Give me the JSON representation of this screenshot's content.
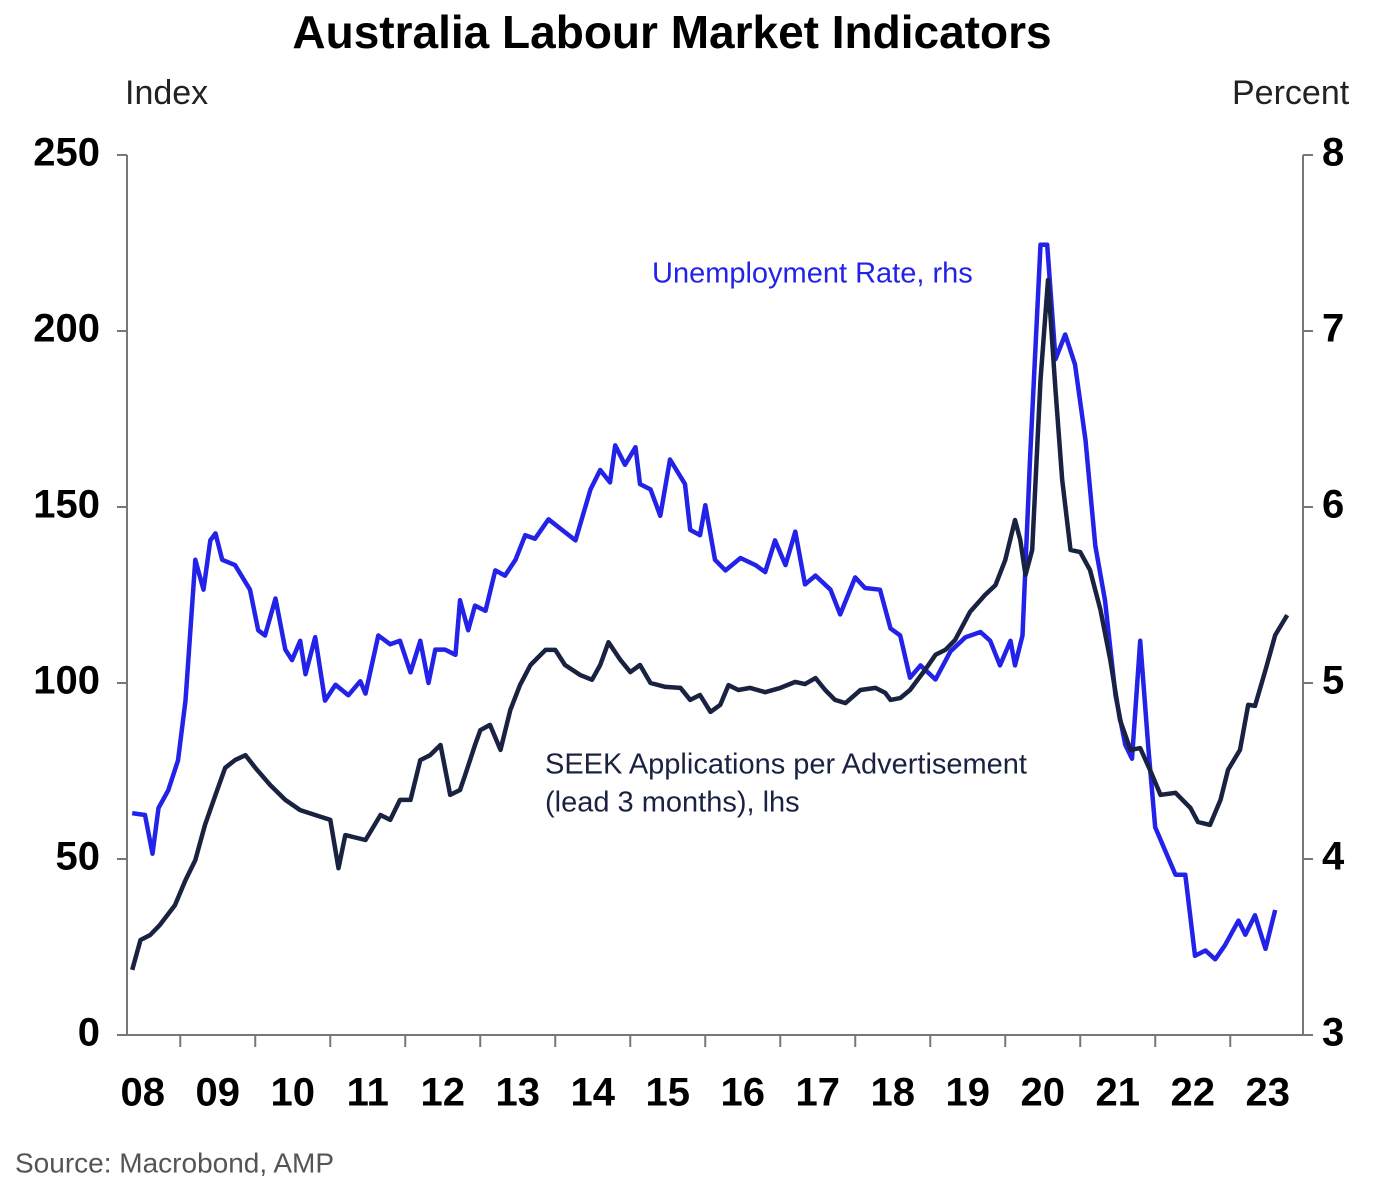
{
  "chart_data": {
    "type": "line",
    "title": "Australia Labour Market Indicators",
    "y_label": "Index",
    "y2_label": "Percent",
    "source": "Source: Macrobond, AMP",
    "xlim": [
      2008.29,
      2023.97
    ],
    "xticks": [
      {
        "value": 2008.5,
        "label": "08"
      },
      {
        "value": 2009.5,
        "label": "09"
      },
      {
        "value": 2010.5,
        "label": "10"
      },
      {
        "value": 2011.5,
        "label": "11"
      },
      {
        "value": 2012.5,
        "label": "12"
      },
      {
        "value": 2013.5,
        "label": "13"
      },
      {
        "value": 2014.5,
        "label": "14"
      },
      {
        "value": 2015.5,
        "label": "15"
      },
      {
        "value": 2016.5,
        "label": "16"
      },
      {
        "value": 2017.5,
        "label": "17"
      },
      {
        "value": 2018.5,
        "label": "18"
      },
      {
        "value": 2019.5,
        "label": "19"
      },
      {
        "value": 2020.5,
        "label": "20"
      },
      {
        "value": 2021.5,
        "label": "21"
      },
      {
        "value": 2022.5,
        "label": "22"
      },
      {
        "value": 2023.5,
        "label": "23"
      }
    ],
    "xtick_marks": [
      2009,
      2010,
      2011,
      2012,
      2013,
      2014,
      2015,
      2016,
      2017,
      2018,
      2019,
      2020,
      2021,
      2022,
      2023
    ],
    "ylim": [
      0,
      250
    ],
    "yticks": [
      0,
      50,
      100,
      150,
      200,
      250
    ],
    "y2lim": [
      3,
      8
    ],
    "y2ticks": [
      3,
      4,
      5,
      6,
      7,
      8
    ],
    "grid": false,
    "series": [
      {
        "label_lines": [
          "Unemployment Rate, rhs"
        ],
        "color": "#2222e8",
        "axis": "y2",
        "x": [
          2008.36,
          2008.53,
          2008.63,
          2008.71,
          2008.84,
          2008.97,
          2009.07,
          2009.2,
          2009.31,
          2009.4,
          2009.47,
          2009.56,
          2009.73,
          2009.93,
          2010.04,
          2010.13,
          2010.27,
          2010.4,
          2010.49,
          2010.6,
          2010.67,
          2010.8,
          2010.93,
          2011.07,
          2011.24,
          2011.4,
          2011.47,
          2011.64,
          2011.8,
          2011.93,
          2012.07,
          2012.2,
          2012.31,
          2012.4,
          2012.53,
          2012.67,
          2012.73,
          2012.84,
          2012.93,
          2013.07,
          2013.2,
          2013.33,
          2013.47,
          2013.6,
          2013.73,
          2013.91,
          2014.09,
          2014.27,
          2014.47,
          2014.6,
          2014.73,
          2014.8,
          2014.93,
          2015.07,
          2015.13,
          2015.27,
          2015.4,
          2015.53,
          2015.73,
          2015.8,
          2015.93,
          2016.0,
          2016.13,
          2016.27,
          2016.47,
          2016.67,
          2016.8,
          2016.93,
          2017.07,
          2017.2,
          2017.33,
          2017.47,
          2017.67,
          2017.8,
          2018.0,
          2018.13,
          2018.33,
          2018.47,
          2018.6,
          2018.73,
          2018.87,
          2019.07,
          2019.27,
          2019.47,
          2019.67,
          2019.8,
          2019.93,
          2020.07,
          2020.13,
          2020.23,
          2020.33,
          2020.47,
          2020.56,
          2020.67,
          2020.8,
          2020.93,
          2021.07,
          2021.2,
          2021.33,
          2021.47,
          2021.6,
          2021.69,
          2021.8,
          2021.91,
          2022.0,
          2022.13,
          2022.27,
          2022.4,
          2022.53,
          2022.67,
          2022.8,
          2022.93,
          2023.11,
          2023.2,
          2023.33,
          2023.47,
          2023.6
        ],
        "values": [
          4.26,
          4.25,
          4.03,
          4.29,
          4.39,
          4.56,
          4.9,
          5.7,
          5.53,
          5.81,
          5.85,
          5.7,
          5.67,
          5.53,
          5.3,
          5.27,
          5.48,
          5.19,
          5.13,
          5.24,
          5.05,
          5.26,
          4.9,
          4.99,
          4.93,
          5.01,
          4.94,
          5.27,
          5.22,
          5.24,
          5.06,
          5.24,
          5.0,
          5.19,
          5.19,
          5.16,
          5.47,
          5.3,
          5.44,
          5.41,
          5.64,
          5.61,
          5.7,
          5.84,
          5.82,
          5.93,
          5.87,
          5.81,
          6.1,
          6.21,
          6.14,
          6.35,
          6.24,
          6.34,
          6.13,
          6.1,
          5.95,
          6.27,
          6.13,
          5.87,
          5.84,
          6.01,
          5.7,
          5.64,
          5.71,
          5.67,
          5.63,
          5.81,
          5.67,
          5.86,
          5.56,
          5.61,
          5.53,
          5.39,
          5.6,
          5.54,
          5.53,
          5.31,
          5.27,
          5.03,
          5.1,
          5.02,
          5.18,
          5.26,
          5.29,
          5.24,
          5.1,
          5.24,
          5.1,
          5.27,
          6.27,
          7.49,
          7.49,
          6.84,
          6.98,
          6.81,
          6.38,
          5.78,
          5.47,
          4.93,
          4.65,
          4.57,
          5.24,
          4.62,
          4.18,
          4.05,
          3.91,
          3.91,
          3.45,
          3.48,
          3.43,
          3.51,
          3.65,
          3.57,
          3.68,
          3.49,
          3.71
        ]
      },
      {
        "label_lines": [
          "SEEK Applications per Advertisement",
          "(lead 3 months), lhs"
        ],
        "color": "#1a2242",
        "axis": "y",
        "x": [
          2008.36,
          2008.47,
          2008.6,
          2008.73,
          2008.93,
          2009.07,
          2009.2,
          2009.33,
          2009.47,
          2009.6,
          2009.73,
          2009.87,
          2010.0,
          2010.2,
          2010.4,
          2010.6,
          2010.8,
          2011.0,
          2011.11,
          2011.2,
          2011.47,
          2011.67,
          2011.8,
          2011.93,
          2012.07,
          2012.2,
          2012.33,
          2012.47,
          2012.6,
          2012.73,
          2012.8,
          2012.93,
          2013.0,
          2013.13,
          2013.27,
          2013.4,
          2013.53,
          2013.67,
          2013.87,
          2014.0,
          2014.13,
          2014.33,
          2014.49,
          2014.6,
          2014.71,
          2014.87,
          2015.0,
          2015.13,
          2015.27,
          2015.47,
          2015.67,
          2015.8,
          2015.93,
          2016.07,
          2016.2,
          2016.31,
          2016.44,
          2016.6,
          2016.8,
          2017.0,
          2017.2,
          2017.33,
          2017.47,
          2017.6,
          2017.73,
          2017.87,
          2018.07,
          2018.27,
          2018.4,
          2018.47,
          2018.6,
          2018.73,
          2018.93,
          2019.07,
          2019.2,
          2019.33,
          2019.53,
          2019.73,
          2019.87,
          2020.0,
          2020.13,
          2020.2,
          2020.27,
          2020.36,
          2020.47,
          2020.57,
          2020.67,
          2020.76,
          2020.87,
          2021.0,
          2021.13,
          2021.27,
          2021.4,
          2021.53,
          2021.67,
          2021.8,
          2021.93,
          2022.07,
          2022.27,
          2022.47,
          2022.57,
          2022.73,
          2022.87,
          2022.97,
          2023.13,
          2023.24,
          2023.33,
          2023.47,
          2023.6,
          2023.76
        ],
        "values": [
          18.5,
          27.0,
          28.4,
          31.3,
          36.9,
          44.0,
          49.7,
          59.7,
          68.2,
          75.9,
          78.1,
          79.5,
          75.9,
          71.0,
          66.8,
          63.9,
          62.5,
          61.1,
          47.4,
          56.8,
          55.4,
          62.5,
          61.1,
          66.8,
          66.8,
          78.1,
          79.5,
          82.4,
          68.2,
          69.6,
          73.9,
          82.4,
          86.6,
          88.1,
          81.0,
          92.3,
          99.4,
          105.1,
          109.4,
          109.4,
          105.1,
          102.3,
          100.9,
          105.1,
          111.6,
          106.5,
          103.1,
          105.1,
          100.0,
          98.9,
          98.6,
          95.2,
          96.6,
          91.8,
          93.8,
          99.4,
          98.0,
          98.6,
          97.4,
          98.6,
          100.3,
          99.7,
          101.4,
          98.0,
          95.2,
          94.3,
          98.0,
          98.6,
          97.2,
          95.2,
          95.7,
          98.0,
          103.7,
          108.0,
          109.4,
          112.2,
          120.2,
          125.0,
          127.8,
          134.9,
          146.3,
          140.6,
          130.7,
          137.8,
          186.1,
          214.5,
          183.2,
          157.7,
          137.8,
          137.2,
          132.1,
          120.7,
          106.5,
          89.5,
          81.0,
          81.5,
          75.3,
          68.2,
          68.8,
          64.5,
          60.5,
          59.7,
          66.8,
          75.3,
          81.0,
          93.8,
          93.5,
          103.7,
          113.6,
          119.3
        ]
      }
    ]
  }
}
